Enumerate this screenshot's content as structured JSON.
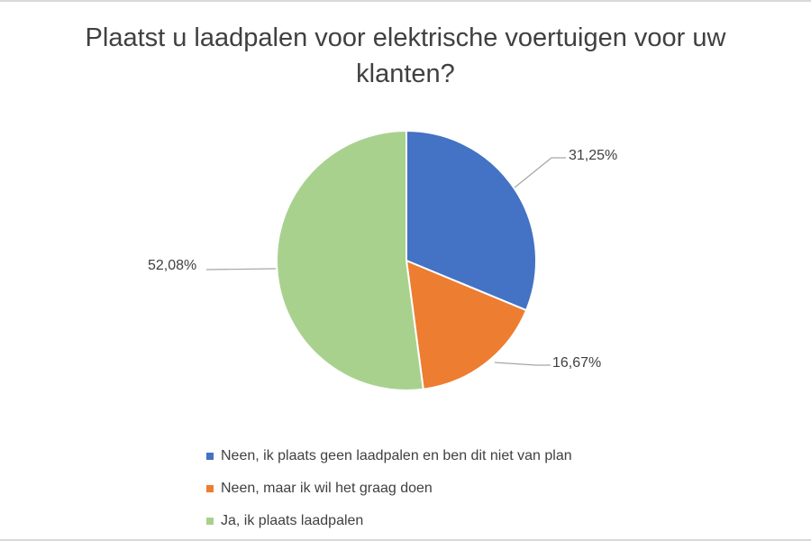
{
  "chart_data": {
    "type": "pie",
    "title": "Plaatst u laadpalen voor elektrische voertuigen voor uw klanten?",
    "categories": [
      "Neen, ik plaats geen laadpalen en ben dit niet van plan",
      "Neen, maar ik wil het graag doen",
      "Ja, ik plaats laadpalen"
    ],
    "values": [
      31.25,
      16.67,
      52.08
    ],
    "data_labels": [
      "31,25%",
      "16,67%",
      "52,08%"
    ],
    "colors": [
      "#4472c4",
      "#ed7d31",
      "#a9d18e"
    ],
    "legend_position": "bottom",
    "start_angle_deg": 0,
    "direction": "clockwise"
  },
  "labels": {
    "title_line1": "Plaatst u laadpalen voor elektrische voertuigen voor uw",
    "title_line2": "klanten?",
    "slice1": "31,25%",
    "slice2": "16,67%",
    "slice3": "52,08%"
  },
  "legend": {
    "items": [
      {
        "label": "Neen, ik plaats geen laadpalen en ben dit niet van plan",
        "color": "#4472c4"
      },
      {
        "label": "Neen, maar ik wil het graag doen",
        "color": "#ed7d31"
      },
      {
        "label": "Ja, ik plaats laadpalen",
        "color": "#a9d18e"
      }
    ]
  }
}
